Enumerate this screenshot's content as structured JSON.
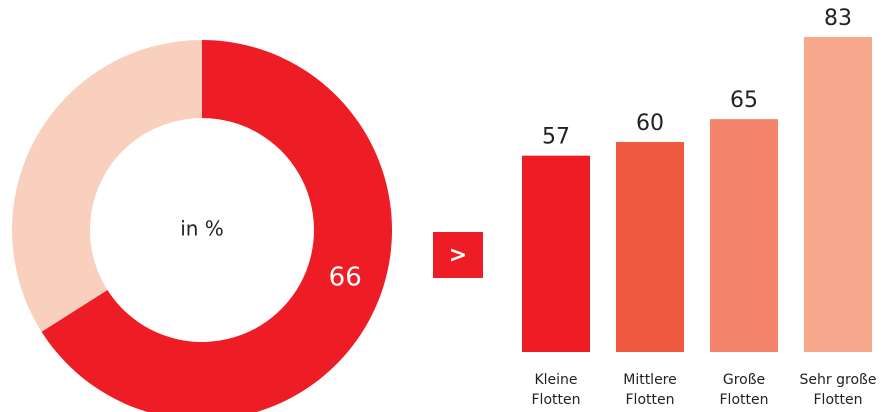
{
  "chart_data": [
    {
      "type": "donut",
      "center_label": "in %",
      "values": [
        66,
        34
      ],
      "value_labels": [
        "66",
        null
      ],
      "colors": [
        "#ee1c25",
        "#f9cfbd"
      ]
    },
    {
      "type": "separator",
      "text": ">",
      "color": "#ee1c25"
    },
    {
      "type": "bar",
      "categories": [
        "Kleine\nFlotten",
        "Mittlere\nFlotten",
        "Große\nFlotten",
        "Sehr große\nFlotten"
      ],
      "values": [
        57,
        60,
        65,
        83
      ],
      "colors": [
        "#ee1c25",
        "#f05a40",
        "#f3836a",
        "#f7a88c"
      ],
      "ylim": [
        14,
        90
      ]
    }
  ]
}
